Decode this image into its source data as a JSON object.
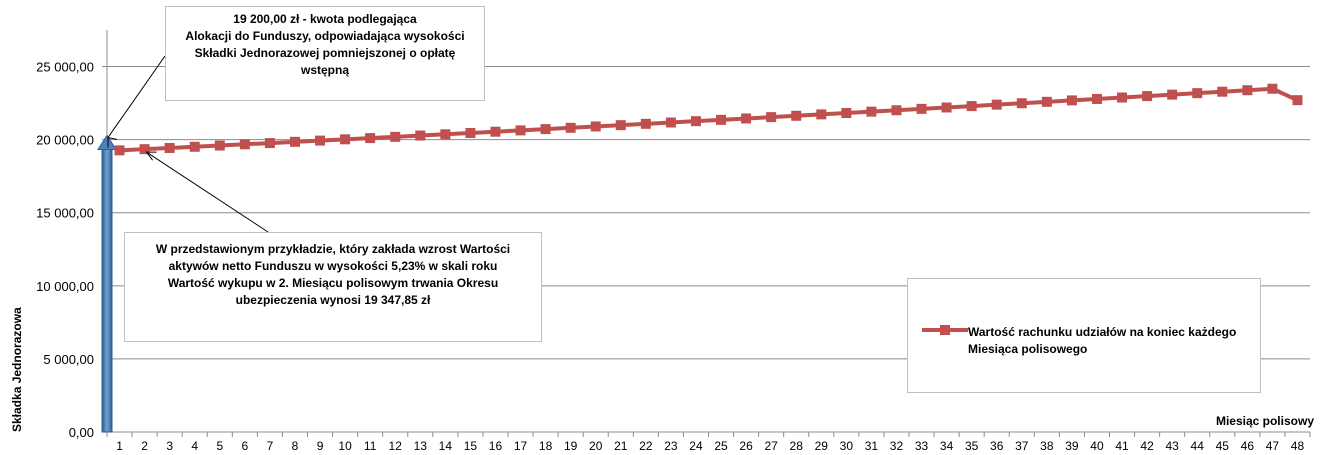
{
  "chart_data": {
    "type": "line",
    "title": "",
    "xlabel": "Miesiąc polisowy",
    "ylabel": "Składka Jednorazowa",
    "ylim": [
      0,
      27500
    ],
    "yticks": [
      0,
      5000,
      10000,
      15000,
      20000,
      25000
    ],
    "ytick_labels": [
      "0,00",
      "5 000,00",
      "10 000,00",
      "15 000,00",
      "20 000,00",
      "25 000,00"
    ],
    "grid": true,
    "legend_position": "right",
    "x": [
      1,
      2,
      3,
      4,
      5,
      6,
      7,
      8,
      9,
      10,
      11,
      12,
      13,
      14,
      15,
      16,
      17,
      18,
      19,
      20,
      21,
      22,
      23,
      24,
      25,
      26,
      27,
      28,
      29,
      30,
      31,
      32,
      33,
      34,
      35,
      36,
      37,
      38,
      39,
      40,
      41,
      42,
      43,
      44,
      45,
      46,
      47,
      48
    ],
    "series": [
      {
        "name": "Wartość rachunku udziałów na koniec każdego Miesiąca polisowego",
        "color": "#c0504d",
        "marker": "square",
        "values": [
          19266,
          19348,
          19430,
          19513,
          19597,
          19681,
          19765,
          19850,
          19935,
          20021,
          20107,
          20193,
          20280,
          20367,
          20455,
          20543,
          20632,
          20721,
          20810,
          20900,
          20990,
          21081,
          21172,
          21263,
          21355,
          21447,
          21540,
          21633,
          21727,
          21821,
          21915,
          22010,
          22105,
          22200,
          22296,
          22393,
          22490,
          22587,
          22685,
          22783,
          22881,
          22980,
          23079,
          23179,
          23279,
          23380,
          23481,
          22700
        ]
      },
      {
        "name": "Składka Jednorazowa",
        "type": "arrow",
        "color": "#4f81bd",
        "value": 19600
      }
    ]
  },
  "annotations": {
    "top": [
      "19 200,00 zł - kwota podlegająca",
      "Alokacji do Funduszy, odpowiadająca wysokości",
      "Składki Jednorazowej pomniejszonej o opłatę",
      "wstępną"
    ],
    "middle": [
      "W przedstawionym przykładzie, który zakłada  wzrost Wartości",
      "aktywów netto Funduszu w wysokości 5,23%  w skali roku",
      "Wartość wykupu w 2. Miesiącu polisowym trwania Okresu",
      "ubezpieczenia wynosi 19 347,85 zł"
    ]
  },
  "legend": {
    "label_line1": "Wartość rachunku udziałów na koniec każdego",
    "label_line2": "Miesiąca polisowego"
  }
}
